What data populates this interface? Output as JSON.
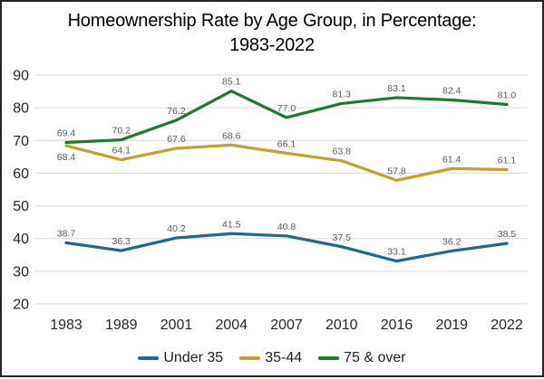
{
  "title_lines": [
    "Homeownership Rate by Age Group, in Percentage:",
    "1983-2022"
  ],
  "chart_data": {
    "type": "line",
    "title": "Homeownership Rate by Age Group, in Percentage: 1983-2022",
    "categories": [
      "1983",
      "1989",
      "2001",
      "2004",
      "2007",
      "2010",
      "2016",
      "2019",
      "2022"
    ],
    "series": [
      {
        "name": "Under 35",
        "color": "#1F6B8E",
        "values": [
          38.7,
          36.3,
          40.2,
          41.5,
          40.8,
          37.5,
          33.1,
          36.2,
          38.5
        ],
        "labels_below_indices": []
      },
      {
        "name": "35-44",
        "color": "#C0A22C",
        "values": [
          68.4,
          64.1,
          67.6,
          68.6,
          66.1,
          63.8,
          57.8,
          61.4,
          61.1
        ],
        "labels_below_indices": [
          0
        ]
      },
      {
        "name": "75 & over",
        "color": "#1E7A2E",
        "values": [
          69.4,
          70.2,
          76.2,
          85.1,
          77.0,
          81.3,
          83.1,
          82.4,
          81.0
        ],
        "labels_below_indices": []
      }
    ],
    "xlabel": "",
    "ylabel": "",
    "ylim": [
      20,
      90
    ],
    "ytick_step": 10,
    "grid": true,
    "data_labels": true,
    "legend_position": "bottom",
    "colors": {
      "grid": "#D9D9D9",
      "axis_text": "#262626",
      "data_label_text": "#595959"
    }
  }
}
